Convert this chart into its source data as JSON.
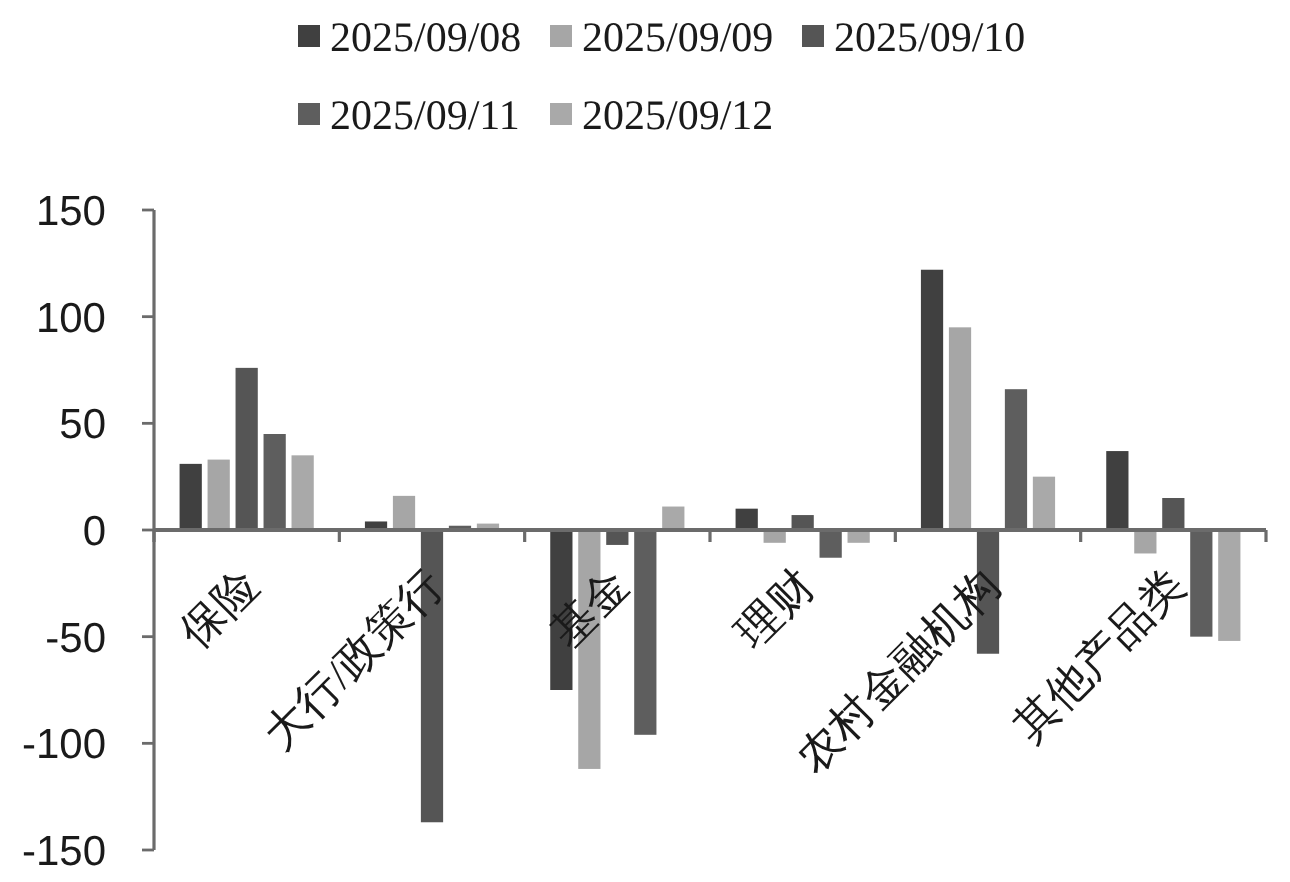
{
  "chart_data": {
    "type": "bar",
    "categories": [
      "保险",
      "大行/政策行",
      "基金",
      "理财",
      "农村金融机构",
      "其他产品类"
    ],
    "series": [
      {
        "name": "2025/09/08",
        "color": "#404040",
        "values": [
          31,
          4,
          -75,
          10,
          122,
          37
        ]
      },
      {
        "name": "2025/09/09",
        "color": "#a6a6a6",
        "values": [
          33,
          16,
          -112,
          -6,
          95,
          -11
        ]
      },
      {
        "name": "2025/09/10",
        "color": "#555555",
        "values": [
          76,
          -137,
          -7,
          7,
          -58,
          15
        ]
      },
      {
        "name": "2025/09/11",
        "color": "#5e5e5e",
        "values": [
          45,
          2,
          -96,
          -13,
          66,
          -50
        ]
      },
      {
        "name": "2025/09/12",
        "color": "#a9a9a9",
        "values": [
          35,
          3,
          11,
          -6,
          25,
          -52
        ]
      }
    ],
    "ylim": [
      -150,
      150
    ],
    "yticks": [
      -150,
      -100,
      -50,
      0,
      50,
      100,
      150
    ],
    "legend": "top"
  }
}
